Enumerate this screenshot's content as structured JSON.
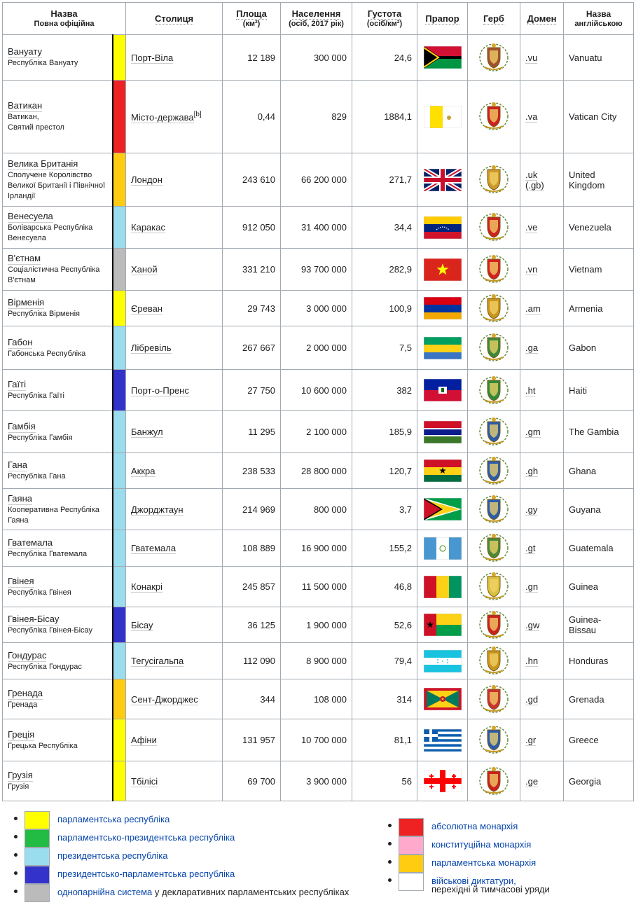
{
  "headers": {
    "name": "Назва",
    "name_sub": "Повна офіційна",
    "capital": "Столиця",
    "area": "Площа",
    "area_sub": "(км²)",
    "population": "Населення",
    "population_sub": "(осіб, 2017 рік)",
    "density": "Густота",
    "density_sub": "(осіб/км²)",
    "flag": "Прапор",
    "coat": "Герб",
    "domain": "Домен",
    "english": "Назва",
    "english_sub": "англійською"
  },
  "rows": [
    {
      "short": "Вануату",
      "full": "Республіка Вануату",
      "gov": "#ffff00",
      "capital": "Порт-Віла",
      "area": "12 189",
      "pop": "300 000",
      "dens": "24,6",
      "flag": "vanuatu",
      "coat_color": "#a0522d",
      "domain": ".vu",
      "english": "Vanuatu"
    },
    {
      "short": "Ватикан",
      "full": "Ватикан,\nСвятий престол",
      "gov": "#ee2222",
      "capital": "Місто-держава",
      "cap_note": "[b]",
      "area": "0,44",
      "pop": "829",
      "dens": "1884,1",
      "flag": "vatican",
      "coat_color": "#cc2020",
      "domain": ".va",
      "english": "Vatican City"
    },
    {
      "short": "Велика Британія",
      "full": "Сполучене Королівство Великої Британії і Північної Ірландії",
      "gov": "#ffcc11",
      "capital": "Лондон",
      "area": "243 610",
      "pop": "66 200 000",
      "dens": "271,7",
      "flag": "uk",
      "coat_color": "#cc9a2a",
      "domain": ".uk\n(.gb)",
      "english": "United\nKingdom"
    },
    {
      "short": "Венесуела",
      "full": "Боліварська Республіка Венесуела",
      "gov": "#99ddee",
      "capital": "Каракас",
      "area": "912 050",
      "pop": "31 400 000",
      "dens": "34,4",
      "flag": "venezuela",
      "coat_color": "#cc2222",
      "domain": ".ve",
      "english": "Venezuela"
    },
    {
      "short": "В'єтнам",
      "full": "Соціалістична Республіка В'єтнам",
      "gov": "#bbbbbb",
      "capital": "Ханой",
      "area": "331 210",
      "pop": "93 700 000",
      "dens": "282,9",
      "flag": "vietnam",
      "coat_color": "#d42020",
      "domain": ".vn",
      "english": "Vietnam"
    },
    {
      "short": "Вірменія",
      "full": "Республіка Вірменія",
      "gov": "#ffff00",
      "capital": "Єреван",
      "area": "29 743",
      "pop": "3 000 000",
      "dens": "100,9",
      "flag": "armenia",
      "coat_color": "#c8961e",
      "domain": ".am",
      "english": "Armenia"
    },
    {
      "short": "Габон",
      "full": "Габонська Республіка",
      "gov": "#99ddee",
      "capital": "Лібревіль",
      "area": "267 667",
      "pop": "2 000 000",
      "dens": "7,5",
      "flag": "gabon",
      "coat_color": "#3a8a3a",
      "domain": ".ga",
      "english": "Gabon"
    },
    {
      "short": "Гаїті",
      "full": "Республіка Гаїті",
      "gov": "#3333cc",
      "capital": "Порт-о-Пренс",
      "area": "27 750",
      "pop": "10 600 000",
      "dens": "382",
      "flag": "haiti",
      "coat_color": "#2e8b3a",
      "domain": ".ht",
      "english": "Haiti"
    },
    {
      "short": "Гамбія",
      "full": "Республіка Гамбія",
      "gov": "#99ddee",
      "capital": "Банжул",
      "area": "11 295",
      "pop": "2 100 000",
      "dens": "185,9",
      "flag": "gambia",
      "coat_color": "#2a5caa",
      "domain": ".gm",
      "english": "The Gambia"
    },
    {
      "short": "Гана",
      "full": "Республіка Гана",
      "gov": "#99ddee",
      "capital": "Аккра",
      "area": "238 533",
      "pop": "28 800 000",
      "dens": "120,7",
      "flag": "ghana",
      "coat_color": "#2a5caa",
      "domain": ".gh",
      "english": "Ghana"
    },
    {
      "short": "Гаяна",
      "full": "Кооперативна Республіка Гаяна",
      "gov": "#99ddee",
      "capital": "Джорджтаун",
      "area": "214 969",
      "pop": "800 000",
      "dens": "3,7",
      "flag": "guyana",
      "coat_color": "#2a5caa",
      "domain": ".gy",
      "english": "Guyana"
    },
    {
      "short": "Гватемала",
      "full": "Республіка Гватемала",
      "gov": "#99ddee",
      "capital": "Гватемала",
      "area": "108 889",
      "pop": "16 900 000",
      "dens": "155,2",
      "flag": "guatemala",
      "coat_color": "#4a8a3a",
      "domain": ".gt",
      "english": "Guatemala"
    },
    {
      "short": "Гвінея",
      "full": "Республіка Гвінея",
      "gov": "#99ddee",
      "capital": "Конакрі",
      "area": "245 857",
      "pop": "11 500 000",
      "dens": "46,8",
      "flag": "guinea",
      "coat_color": "#d8c040",
      "domain": ".gn",
      "english": "Guinea"
    },
    {
      "short": "Гвінея-Бісау",
      "full": "Республіка Гвінея-Бісау",
      "gov": "#3333cc",
      "capital": "Бісау",
      "area": "36 125",
      "pop": "1 900 000",
      "dens": "52,6",
      "flag": "guineabissau",
      "coat_color": "#cc2020",
      "domain": ".gw",
      "english": "Guinea-\nBissau"
    },
    {
      "short": "Гондурас",
      "full": "Республіка Гондурас",
      "gov": "#99ddee",
      "capital": "Тегусігальпа",
      "area": "112 090",
      "pop": "8 900 000",
      "dens": "79,4",
      "flag": "honduras",
      "coat_color": "#c8961e",
      "domain": ".hn",
      "english": "Honduras"
    },
    {
      "short": "Гренада",
      "full": "Гренада",
      "gov": "#ffcc11",
      "capital": "Сент-Джорджес",
      "area": "344",
      "pop": "108 000",
      "dens": "314",
      "flag": "grenada",
      "coat_color": "#cc3030",
      "domain": ".gd",
      "english": "Grenada"
    },
    {
      "short": "Греція",
      "full": "Грецька Республіка",
      "gov": "#ffff00",
      "capital": "Афіни",
      "area": "131 957",
      "pop": "10 700 000",
      "dens": "81,1",
      "flag": "greece",
      "coat_color": "#2a5caa",
      "domain": ".gr",
      "english": "Greece"
    },
    {
      "short": "Грузія",
      "full": "Грузія",
      "gov": "#ffff00",
      "capital": "Тбілісі",
      "area": "69 700",
      "pop": "3 900 000",
      "dens": "56",
      "flag": "georgia",
      "coat_color": "#cc2020",
      "domain": ".ge",
      "english": "Georgia"
    }
  ],
  "legend_left": [
    {
      "color": "#ffff00",
      "label": "парламентська республіка",
      "extra": ""
    },
    {
      "color": "#22bb44",
      "label": "парламентсько-президентська республіка",
      "extra": ""
    },
    {
      "color": "#99ddee",
      "label": "президентська республіка",
      "extra": ""
    },
    {
      "color": "#3333cc",
      "label": "президентсько-парламентська республіка",
      "extra": ""
    },
    {
      "color": "#bbbbbb",
      "label": "однопарнійна система",
      "extra": " у декларативних парламентських республіках"
    }
  ],
  "legend_right": [
    {
      "color": "#ee2222",
      "label": "абсолютна монархія",
      "extra": ""
    },
    {
      "color": "#ffaacc",
      "label": "конституційна монархія",
      "extra": ""
    },
    {
      "color": "#ffcc11",
      "label": "парламентська монархія",
      "extra": ""
    },
    {
      "color": "#ffffff",
      "label": "військові диктатури,",
      "extra": "перехідні й тимчасові уряди"
    }
  ]
}
